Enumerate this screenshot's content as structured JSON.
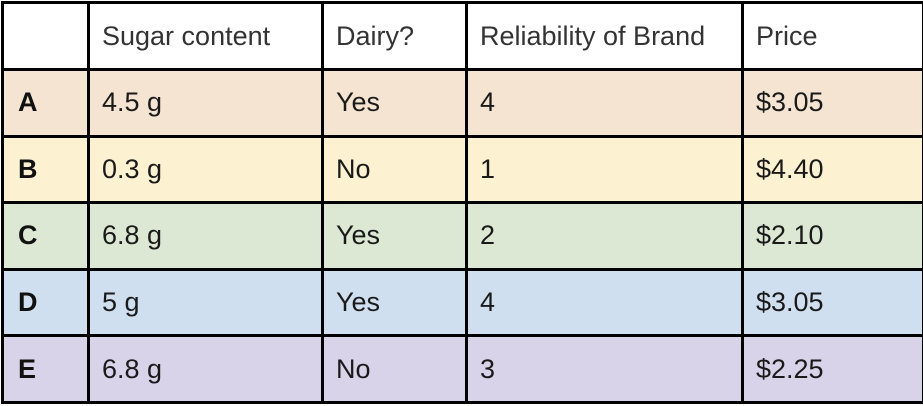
{
  "table": {
    "headers": [
      "",
      "Sugar content",
      "Dairy?",
      "Reliability of Brand",
      "Price"
    ],
    "rows": [
      {
        "label": "A",
        "sugar": "4.5 g",
        "dairy": "Yes",
        "reliability": "4",
        "price": "$3.05",
        "color": "#f4e4d1"
      },
      {
        "label": "B",
        "sugar": "0.3 g",
        "dairy": "No",
        "reliability": "1",
        "price": "$4.40",
        "color": "#fcf1d0"
      },
      {
        "label": "C",
        "sugar": "6.8 g",
        "dairy": "Yes",
        "reliability": "2",
        "price": "$2.10",
        "color": "#dce8d4"
      },
      {
        "label": "D",
        "sugar": "5 g",
        "dairy": "Yes",
        "reliability": "4",
        "price": "$3.05",
        "color": "#d0dff0"
      },
      {
        "label": "E",
        "sugar": "6.8 g",
        "dairy": "No",
        "reliability": "3",
        "price": "$2.25",
        "color": "#d8d3e8"
      }
    ]
  }
}
